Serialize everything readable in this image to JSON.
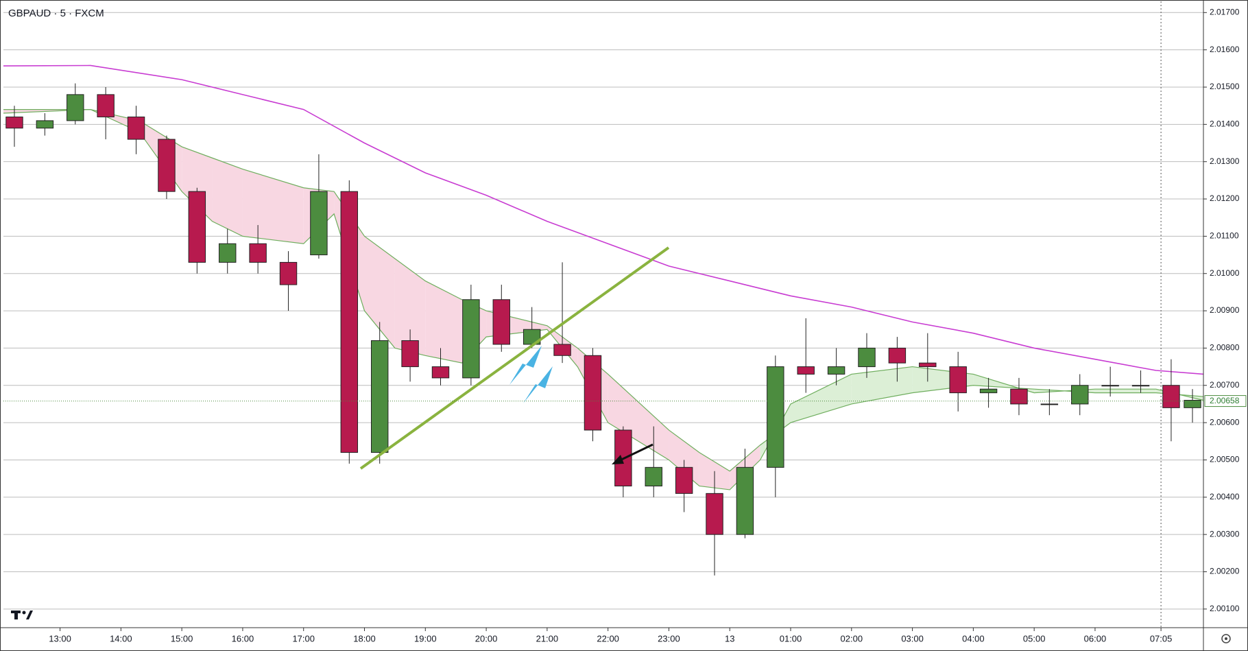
{
  "chart_data": {
    "type": "candlestick",
    "title": "GBPAUD · 5 · FXCM",
    "x": [
      12.25,
      12.75,
      13.25,
      13.75,
      14.25,
      14.75,
      15.25,
      15.75,
      16.25,
      16.75,
      17.25,
      17.75,
      18.25,
      18.75,
      19.25,
      19.75,
      20.25,
      20.75,
      21.25,
      21.75,
      22.25,
      22.75,
      23.25,
      23.75,
      24.25,
      24.75,
      25.25,
      25.75,
      26.25,
      26.75,
      27.25,
      27.75,
      28.25,
      28.75,
      29.25,
      29.75,
      30.25,
      30.75,
      31.25,
      31.6
    ],
    "open": [
      2.0142,
      2.0139,
      2.0141,
      2.0148,
      2.0142,
      2.0136,
      2.0122,
      2.0103,
      2.0108,
      2.0103,
      2.0105,
      2.0122,
      2.0052,
      2.0082,
      2.0075,
      2.0072,
      2.0093,
      2.0081,
      2.0081,
      2.0078,
      2.0058,
      2.0043,
      2.0048,
      2.0041,
      2.003,
      2.0048,
      2.0075,
      2.0073,
      2.0075,
      2.008,
      2.0076,
      2.0075,
      2.0068,
      2.0069,
      2.0065,
      2.0065,
      2.007,
      2.007,
      2.007,
      2.0064
    ],
    "high": [
      2.0145,
      2.0143,
      2.0151,
      2.015,
      2.0145,
      2.0137,
      2.0123,
      2.0112,
      2.0113,
      2.0106,
      2.0132,
      2.0125,
      2.0087,
      2.0085,
      2.008,
      2.0097,
      2.0097,
      2.0091,
      2.0103,
      2.008,
      2.0059,
      2.0059,
      2.005,
      2.0047,
      2.0053,
      2.0078,
      2.0088,
      2.008,
      2.0084,
      2.0083,
      2.0084,
      2.0079,
      2.0072,
      2.0072,
      2.0069,
      2.0073,
      2.0075,
      2.0074,
      2.0077,
      2.0069
    ],
    "low": [
      2.0134,
      2.0137,
      2.014,
      2.0136,
      2.0132,
      2.012,
      2.01,
      2.01,
      2.01,
      2.009,
      2.0104,
      2.0049,
      2.0049,
      2.0071,
      2.007,
      2.007,
      2.0079,
      2.008,
      2.0076,
      2.0055,
      2.004,
      2.004,
      2.0036,
      2.0019,
      2.0029,
      2.004,
      2.0068,
      2.007,
      2.0072,
      2.0071,
      2.0071,
      2.0063,
      2.0064,
      2.0062,
      2.0062,
      2.0062,
      2.0067,
      2.0068,
      2.0055,
      2.006
    ],
    "close": [
      2.0139,
      2.0141,
      2.0148,
      2.0142,
      2.0136,
      2.0122,
      2.0103,
      2.0108,
      2.0103,
      2.0097,
      2.0122,
      2.0052,
      2.0082,
      2.0075,
      2.0072,
      2.0093,
      2.0081,
      2.0085,
      2.0078,
      2.0058,
      2.0043,
      2.0048,
      2.0041,
      2.003,
      2.0048,
      2.0075,
      2.0073,
      2.0075,
      2.008,
      2.0076,
      2.0075,
      2.0068,
      2.0069,
      2.0065,
      2.0065,
      2.007,
      2.007,
      2.007,
      2.0064,
      2.0066
    ],
    "up_color": "#4c8c3f",
    "down_color": "#b71a4e",
    "ma": {
      "x": [
        12.07,
        13.5,
        15,
        16,
        17,
        18,
        19,
        20,
        21,
        22,
        23,
        24,
        25,
        26,
        27,
        28,
        29,
        30,
        31,
        31.78
      ],
      "values": [
        2.01557,
        2.01558,
        2.0152,
        2.0148,
        2.0144,
        2.0135,
        2.0127,
        2.0121,
        2.0114,
        2.0108,
        2.0102,
        2.0098,
        2.0094,
        2.0091,
        2.0087,
        2.0084,
        2.008,
        2.0077,
        2.0074,
        2.0073
      ],
      "color": "#c83cd2"
    },
    "bands": {
      "x": [
        12.07,
        13.5,
        14.3,
        15,
        15.5,
        16,
        17,
        17.5,
        18,
        18.5,
        19,
        19.6,
        20,
        21,
        21.5,
        22,
        23,
        23.5,
        24,
        24.5,
        25,
        26,
        27,
        28,
        29,
        30,
        31,
        31.78
      ],
      "slow": [
        2.0144,
        2.0144,
        2.0141,
        2.0134,
        2.0131,
        2.0128,
        2.0123,
        2.0122,
        2.011,
        2.0104,
        2.0098,
        2.0093,
        2.009,
        2.0086,
        2.008,
        2.0073,
        2.0058,
        2.0052,
        2.0047,
        2.0054,
        2.006,
        2.0065,
        2.0068,
        2.007,
        2.0069,
        2.0068,
        2.0068,
        2.0067
      ],
      "fast": [
        2.0143,
        2.0144,
        2.0138,
        2.0122,
        2.0114,
        2.011,
        2.0108,
        2.0116,
        2.009,
        2.008,
        2.0078,
        2.0076,
        2.0083,
        2.0085,
        2.0075,
        2.006,
        2.005,
        2.0043,
        2.0042,
        2.005,
        2.0065,
        2.0073,
        2.0075,
        2.0073,
        2.0068,
        2.0069,
        2.0069,
        2.0066
      ],
      "line_color": "#6fae5e",
      "down_fill": "#f8d7e2",
      "up_fill": "#dcefd6"
    },
    "xlim": [
      12.07,
      31.78
    ],
    "ylim": [
      2.0005,
      2.0173
    ],
    "xticks": [
      {
        "value": 13,
        "label": "13:00"
      },
      {
        "value": 14,
        "label": "14:00"
      },
      {
        "value": 15,
        "label": "15:00"
      },
      {
        "value": 16,
        "label": "16:00"
      },
      {
        "value": 17,
        "label": "17:00"
      },
      {
        "value": 18,
        "label": "18:00"
      },
      {
        "value": 19,
        "label": "19:00"
      },
      {
        "value": 20,
        "label": "20:00"
      },
      {
        "value": 21,
        "label": "21:00"
      },
      {
        "value": 22,
        "label": "22:00"
      },
      {
        "value": 23,
        "label": "23:00"
      },
      {
        "value": 24,
        "label": "13"
      },
      {
        "value": 25,
        "label": "01:00"
      },
      {
        "value": 26,
        "label": "02:00"
      },
      {
        "value": 27,
        "label": "03:00"
      },
      {
        "value": 28,
        "label": "04:00"
      },
      {
        "value": 29,
        "label": "05:00"
      },
      {
        "value": 30,
        "label": "06:00"
      },
      {
        "value": 31.083,
        "label": "07:05"
      }
    ],
    "yticks": [
      {
        "value": 2.001,
        "label": "2.00100"
      },
      {
        "value": 2.002,
        "label": "2.00200"
      },
      {
        "value": 2.003,
        "label": "2.00300"
      },
      {
        "value": 2.004,
        "label": "2.00400"
      },
      {
        "value": 2.005,
        "label": "2.00500"
      },
      {
        "value": 2.006,
        "label": "2.00600"
      },
      {
        "value": 2.007,
        "label": "2.00700"
      },
      {
        "value": 2.008,
        "label": "2.00800"
      },
      {
        "value": 2.009,
        "label": "2.00900"
      },
      {
        "value": 2.01,
        "label": "2.01000"
      },
      {
        "value": 2.011,
        "label": "2.01100"
      },
      {
        "value": 2.012,
        "label": "2.01200"
      },
      {
        "value": 2.013,
        "label": "2.01300"
      },
      {
        "value": 2.014,
        "label": "2.01400"
      },
      {
        "value": 2.015,
        "label": "2.01500"
      },
      {
        "value": 2.016,
        "label": "2.01600"
      },
      {
        "value": 2.017,
        "label": "2.01700"
      }
    ],
    "last_price": {
      "value": 2.00658,
      "label": "2.00658"
    },
    "cursor_x": 31.083,
    "grid": true
  }
}
